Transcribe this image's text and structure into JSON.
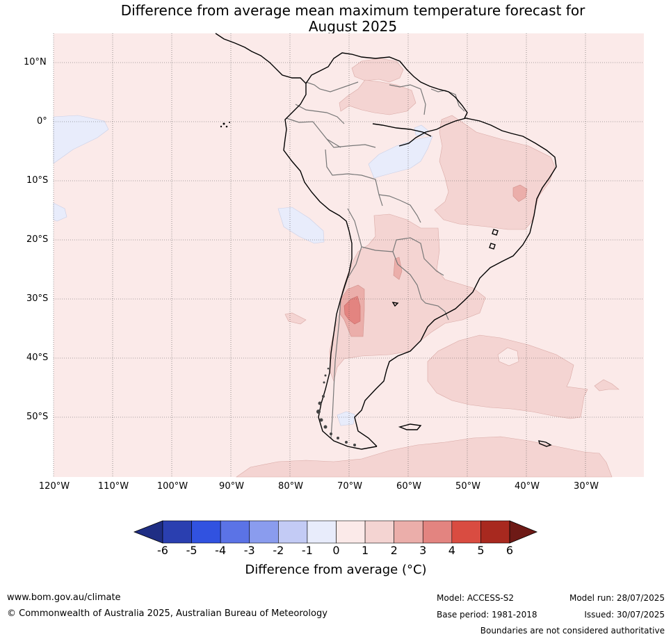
{
  "title_line1": "Difference from average mean maximum temperature forecast for",
  "title_line2": "August 2025",
  "lat_labels": [
    "10°N",
    "0°",
    "10°S",
    "20°S",
    "30°S",
    "40°S",
    "50°S"
  ],
  "lon_labels": [
    "120°W",
    "110°W",
    "100°W",
    "90°W",
    "80°W",
    "70°W",
    "60°W",
    "50°W",
    "40°W",
    "30°W"
  ],
  "colorbar": {
    "ticks": [
      "-6",
      "-5",
      "-4",
      "-3",
      "-2",
      "-1",
      "0",
      "1",
      "2",
      "3",
      "4",
      "5",
      "6"
    ],
    "colors": [
      "#1f2e84",
      "#2a3fb0",
      "#3152e0",
      "#5b73e6",
      "#8a9cee",
      "#c3cbf5",
      "#e8ecfb",
      "#fbeae9",
      "#f4d4d2",
      "#ebaeaa",
      "#e38480",
      "#d94c41",
      "#a8291f",
      "#6e1a16"
    ],
    "title": "Difference from average (°C)"
  },
  "footer": {
    "url": "www.bom.gov.au/climate",
    "copyright": "© Commonwealth of Australia 2025, Australian Bureau of Meteorology",
    "model": "Model: ACCESS-S2",
    "base_period": "Base period: 1981-2018",
    "model_run": "Model run: 28/07/2025",
    "issued": "Issued: 30/07/2025",
    "disclaimer": "Boundaries are not considered authoritative"
  }
}
